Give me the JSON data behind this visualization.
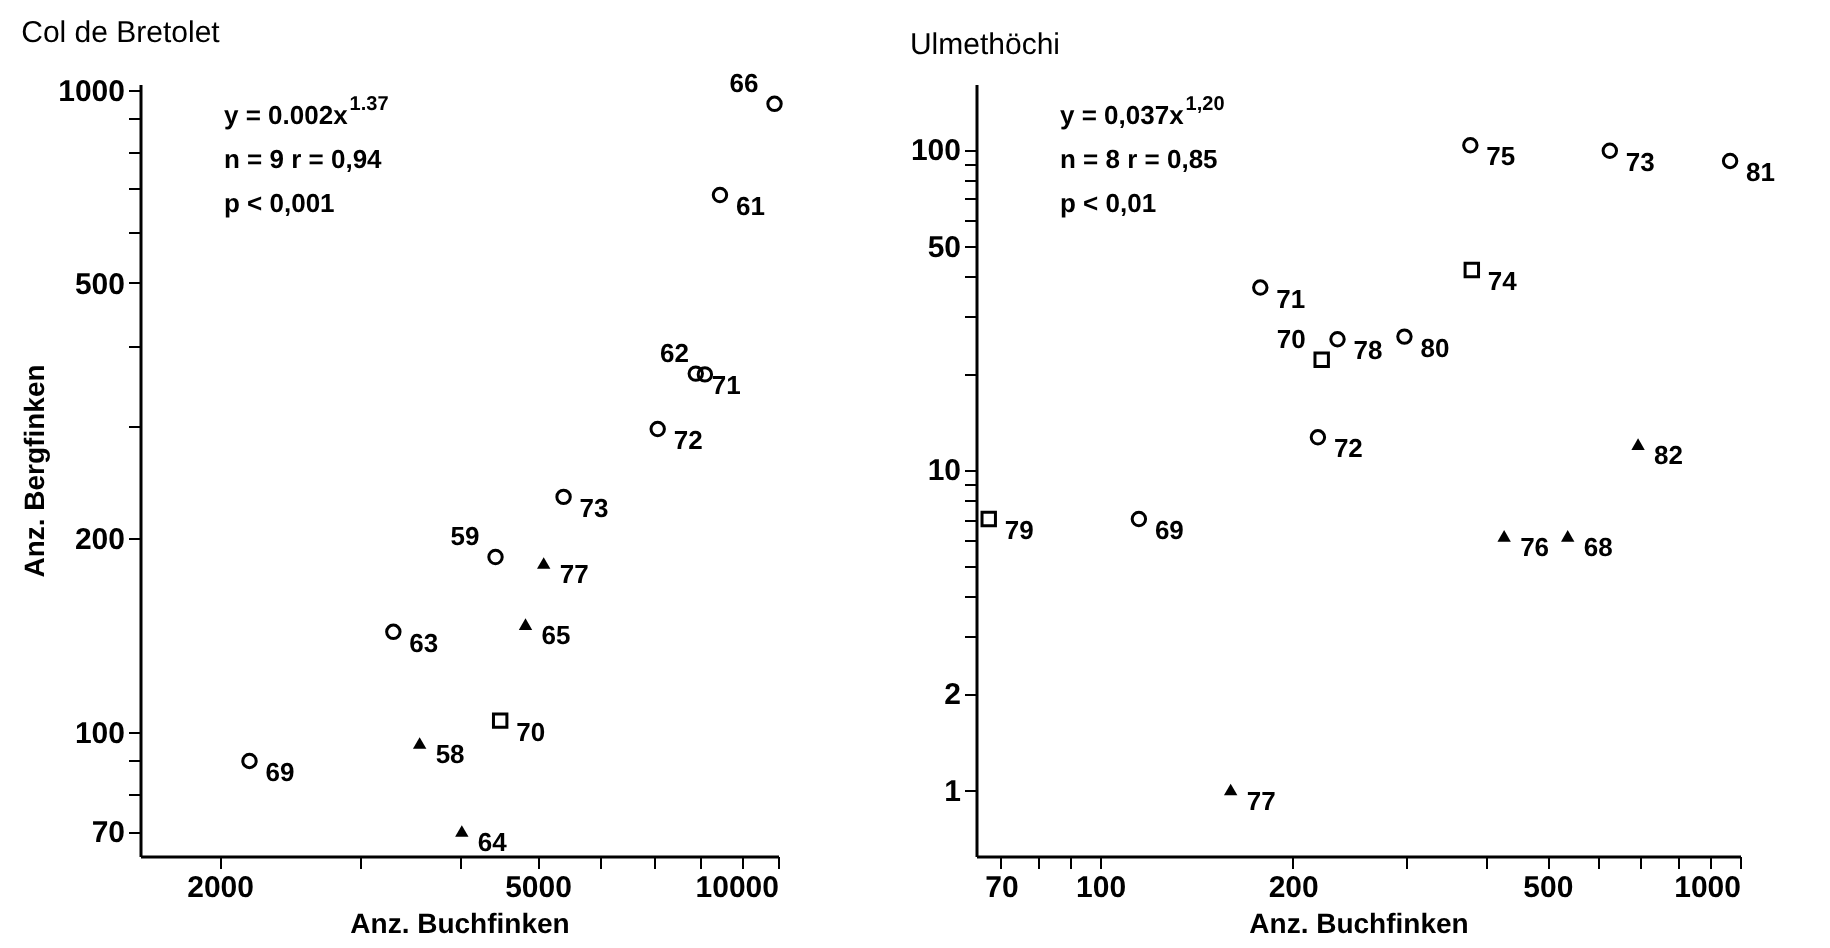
{
  "chart_data": [
    {
      "type": "scatter",
      "title": "Col de Bretolet",
      "xlabel": "Anz. Buchfinken",
      "ylabel": "Anz. Bergfinken",
      "log": "xy",
      "grid": false,
      "xlim": [
        1590,
        10000
      ],
      "ylim": [
        64,
        1020
      ],
      "xticks": [
        2000,
        {
          "value": 3000,
          "label": null
        },
        {
          "value": 4000,
          "label": null
        },
        5000,
        {
          "value": 6000,
          "label": null
        },
        {
          "value": 7000,
          "label": null
        },
        {
          "value": 8000,
          "label": null
        },
        {
          "value": 9000,
          "label": null
        },
        10000
      ],
      "yticks": [
        70,
        {
          "value": 80,
          "label": null
        },
        {
          "value": 90,
          "label": null
        },
        100,
        200,
        {
          "value": 300,
          "label": null
        },
        {
          "value": 400,
          "label": null
        },
        500,
        {
          "value": 600,
          "label": null
        },
        {
          "value": 700,
          "label": null
        },
        {
          "value": 800,
          "label": null
        },
        {
          "value": 900,
          "label": null
        },
        1000
      ],
      "annotations": [
        "y = 0.002x$^{1.37}$",
        "n = 9   r = 0,94",
        "p < 0,001",
        {
          "text": "66",
          "x": 9900,
          "y": 950
        },
        {
          "text": "61",
          "x": 8460,
          "y": 685
        },
        {
          "text": "71",
          "x": 7890,
          "y": 361
        },
        {
          "text": "62",
          "x": 8100,
          "y": 360
        },
        {
          "text": "72",
          "x": 7070,
          "y": 296
        },
        {
          "text": "73",
          "x": 5390,
          "y": 232
        },
        {
          "text": "59",
          "x": 4430,
          "y": 187
        },
        {
          "text": "63",
          "x": 3300,
          "y": 143
        },
        {
          "text": "69",
          "x": 2180,
          "y": 90
        },
        {
          "text": "77",
          "x": 5090,
          "y": 183
        },
        {
          "text": "65",
          "x": 4830,
          "y": 147
        },
        {
          "text": "58",
          "x": 3560,
          "y": 96
        },
        {
          "text": "64",
          "x": 4020,
          "y": 70
        },
        {
          "text": "70",
          "x": 4490,
          "y": 104
        }
      ],
      "series": [
        {
          "color": "#000000",
          "marker": "circle",
          "x": [
            9900,
            8460,
            7890,
            8100,
            7070,
            5390,
            4430,
            3300,
            2180
          ],
          "values": [
            950,
            685,
            361,
            360,
            296,
            232,
            187,
            143,
            90
          ]
        },
        {
          "color": "#000000",
          "marker": "triangle",
          "x": [
            5090,
            4830,
            3560,
            4020
          ],
          "values": [
            183,
            147,
            96,
            70
          ]
        },
        {
          "color": "#000000",
          "marker": "square",
          "x": [
            4490
          ],
          "values": [
            104
          ]
        }
      ]
    },
    {
      "type": "scatter",
      "title": "Ulmethöchi",
      "xlabel": "Anz. Buchfinken",
      "log": "xy",
      "grid": false,
      "xlim": [
        64,
        1000
      ],
      "ylim": [
        0.62,
        160
      ],
      "xticks": [
        70,
        {
          "value": 80,
          "label": null
        },
        {
          "value": 90,
          "label": null
        },
        100,
        200,
        {
          "value": 300,
          "label": null
        },
        {
          "value": 400,
          "label": null
        },
        500,
        {
          "value": 600,
          "label": null
        },
        {
          "value": 700,
          "label": null
        },
        {
          "value": 800,
          "label": null
        },
        {
          "value": 900,
          "label": null
        },
        1000
      ],
      "yticks": [
        1,
        2,
        {
          "value": 3,
          "label": null
        },
        {
          "value": 4,
          "label": null
        },
        {
          "value": 5,
          "label": null
        },
        {
          "value": 6,
          "label": null
        },
        {
          "value": 7,
          "label": null
        },
        {
          "value": 8,
          "label": null
        },
        {
          "value": 9,
          "label": null
        },
        10,
        {
          "value": 20,
          "label": null
        },
        {
          "value": 30,
          "label": null
        },
        {
          "value": 40,
          "label": null
        },
        50,
        {
          "value": 60,
          "label": null
        },
        {
          "value": 70,
          "label": null
        },
        {
          "value": 80,
          "label": null
        },
        {
          "value": 90,
          "label": null
        },
        100
      ],
      "annotations": [
        "y = 0,037x$^{1,20}$",
        "n = 8   r = 0,85",
        "p < 0,01",
        {
          "text": "75",
          "x": 379,
          "y": 103
        },
        {
          "text": "73",
          "x": 626,
          "y": 99
        },
        {
          "text": "81",
          "x": 965,
          "y": 92
        },
        {
          "text": "71",
          "x": 178,
          "y": 37
        },
        {
          "text": "78",
          "x": 235,
          "y": 25.5
        },
        {
          "text": "80",
          "x": 299,
          "y": 26
        },
        {
          "text": "72",
          "x": 219,
          "y": 12.6
        },
        {
          "text": "69",
          "x": 115,
          "y": 7.0
        },
        {
          "text": "82",
          "x": 693,
          "y": 12
        },
        {
          "text": "76",
          "x": 428,
          "y": 6.2
        },
        {
          "text": "68",
          "x": 538,
          "y": 6.2
        },
        {
          "text": "77",
          "x": 160,
          "y": 1.0
        },
        {
          "text": "74",
          "x": 381,
          "y": 42
        },
        {
          "text": "70",
          "x": 222,
          "y": 22
        },
        {
          "text": "79",
          "x": 67,
          "y": 7.0
        }
      ],
      "series": [
        {
          "color": "#000000",
          "marker": "circle",
          "x": [
            379,
            626,
            965,
            178,
            235,
            299,
            219,
            115
          ],
          "values": [
            103,
            99,
            92,
            37,
            25.5,
            26,
            12.6,
            7.0
          ]
        },
        {
          "color": "#000000",
          "marker": "triangle",
          "x": [
            693,
            428,
            538,
            160
          ],
          "values": [
            12,
            6.2,
            6.2,
            1.0
          ]
        },
        {
          "color": "#000000",
          "marker": "square",
          "x": [
            381,
            222,
            67
          ],
          "values": [
            42,
            22,
            7.0
          ]
        }
      ]
    }
  ]
}
